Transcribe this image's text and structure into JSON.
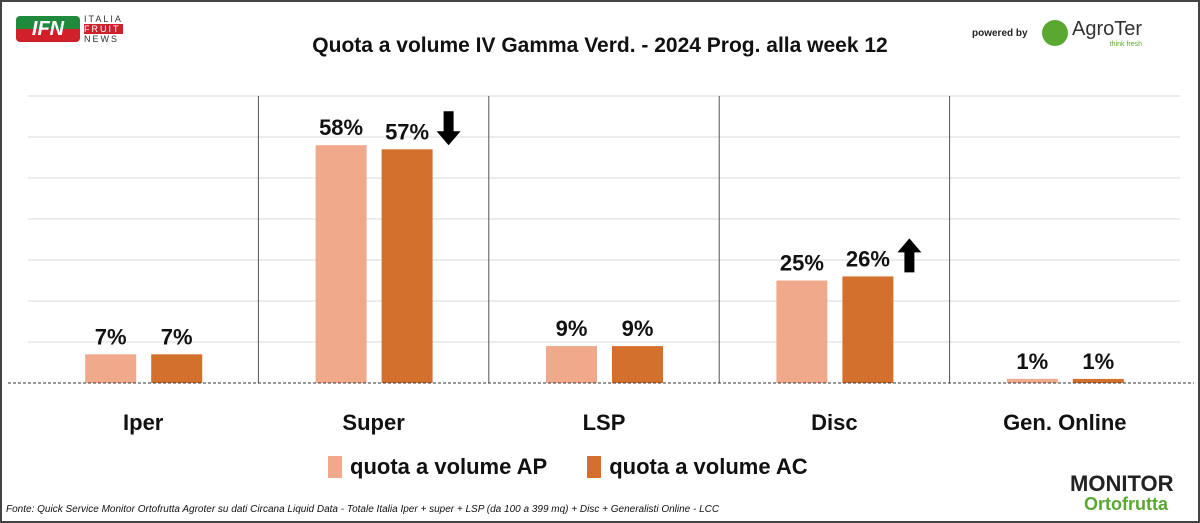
{
  "header": {
    "title": "Quota a volume IV Gamma Verd. - 2024 Prog. alla week 12",
    "logo_ifn": "IFN",
    "logo_ifn_lines": [
      "ITALIA",
      "FRUIT",
      "NEWS"
    ],
    "powered_by": "powered by",
    "agroter": "AgroTer",
    "agroter_tag": "think fresh"
  },
  "chart_data": {
    "type": "bar",
    "title": "Quota a volume IV Gamma Verd. - 2024 Prog. alla week 12",
    "categories": [
      "Iper",
      "Super",
      "LSP",
      "Disc",
      "Gen. Online"
    ],
    "series": [
      {
        "name": "quota a volume AP",
        "color": "#f0a98a",
        "values": [
          7,
          58,
          9,
          25,
          1
        ]
      },
      {
        "name": "quota a volume AC",
        "color": "#d4702d",
        "values": [
          7,
          57,
          9,
          26,
          1
        ]
      }
    ],
    "labels": [
      [
        "7%",
        "7%"
      ],
      [
        "58%",
        "57%"
      ],
      [
        "9%",
        "9%"
      ],
      [
        "25%",
        "26%"
      ],
      [
        "1%",
        "1%"
      ]
    ],
    "trend_arrows": [
      null,
      "down",
      null,
      "up",
      null
    ],
    "ylim": [
      0,
      70
    ],
    "grid": true,
    "legend": "bottom"
  },
  "footer": {
    "source": "Fonte: Quick Service Monitor Ortofrutta Agroter su dati Circana Liquid Data - Totale Italia Iper + super + LSP (da 100 a 399 mq) + Disc + Generalisti Online - LCC",
    "monitor": "MONITOR",
    "ortofrutta": "Ortofrutta"
  }
}
